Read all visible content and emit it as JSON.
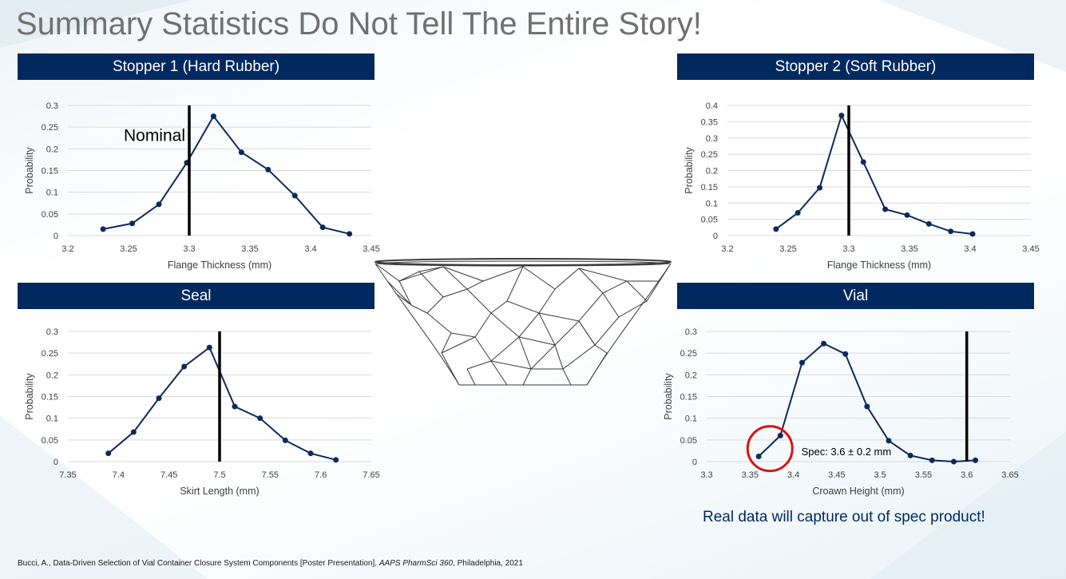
{
  "title": "Summary Statistics Do Not Tell The Entire Story!",
  "panels": [
    {
      "header": "Stopper 1 (Hard Rubber)"
    },
    {
      "header": "Stopper 2 (Soft Rubber)"
    },
    {
      "header": "Seal"
    },
    {
      "header": "Vial"
    }
  ],
  "tagline": "Real data will capture out of spec product!",
  "citation": {
    "part1": "Bucci, A., Data-Driven Selection of Vial Container Closure System Components [Poster Presentation], ",
    "venue": "AAPS PharmSci 360",
    "part2": ", Philadelphia, 2021"
  },
  "illustration": {
    "icon": "wireframe-funnel-icon"
  },
  "colors": {
    "header_bg": "#002960",
    "series_line": "#0d2a5c",
    "marker_line": "#000000",
    "highlight_circle": "#e01010"
  },
  "chart_data": [
    {
      "type": "line",
      "xlabel": "Flange Thickness (mm)",
      "ylabel": "Probability",
      "xlim": [
        3.2,
        3.45
      ],
      "xticks": [
        3.2,
        3.25,
        3.3,
        3.35,
        3.4,
        3.45
      ],
      "ylim": [
        0,
        0.3
      ],
      "yticks": [
        0,
        0.05,
        0.1,
        0.15,
        0.2,
        0.25,
        0.3
      ],
      "x": [
        3.229,
        3.253,
        3.275,
        3.298,
        3.32,
        3.343,
        3.365,
        3.387,
        3.41,
        3.432
      ],
      "y": [
        0.015,
        0.028,
        0.072,
        0.168,
        0.275,
        0.192,
        0.152,
        0.092,
        0.019,
        0.004
      ],
      "vline": 3.3,
      "annotation": "Nominal",
      "grid": true,
      "legend": "none"
    },
    {
      "type": "line",
      "xlabel": "Flange Thickness (mm)",
      "ylabel": "Probability",
      "xlim": [
        3.2,
        3.45
      ],
      "xticks": [
        3.2,
        3.25,
        3.3,
        3.35,
        3.4,
        3.45
      ],
      "ylim": [
        0,
        0.4
      ],
      "yticks": [
        0,
        0.05,
        0.1,
        0.15,
        0.2,
        0.25,
        0.3,
        0.35,
        0.4
      ],
      "x": [
        3.24,
        3.258,
        3.276,
        3.294,
        3.312,
        3.33,
        3.348,
        3.366,
        3.384,
        3.402
      ],
      "y": [
        0.02,
        0.07,
        0.147,
        0.369,
        0.226,
        0.081,
        0.063,
        0.036,
        0.013,
        0.005
      ],
      "vline": 3.3,
      "grid": true,
      "legend": "none"
    },
    {
      "type": "line",
      "xlabel": "Skirt Length (mm)",
      "ylabel": "Probability",
      "xlim": [
        7.35,
        7.65
      ],
      "xticks": [
        7.35,
        7.4,
        7.45,
        7.5,
        7.55,
        7.6,
        7.65
      ],
      "ylim": [
        0,
        0.3
      ],
      "yticks": [
        0,
        0.05,
        0.1,
        0.15,
        0.2,
        0.25,
        0.3
      ],
      "x": [
        7.39,
        7.415,
        7.44,
        7.465,
        7.49,
        7.515,
        7.54,
        7.565,
        7.59,
        7.615
      ],
      "y": [
        0.019,
        0.068,
        0.146,
        0.219,
        0.263,
        0.127,
        0.1,
        0.049,
        0.019,
        0.004
      ],
      "vline": 7.5,
      "grid": true,
      "legend": "none"
    },
    {
      "type": "line",
      "xlabel": "Croawn Height (mm)",
      "ylabel": "Probability",
      "xlim": [
        3.3,
        3.65
      ],
      "xticks": [
        3.3,
        3.35,
        3.4,
        3.45,
        3.5,
        3.55,
        3.6,
        3.65
      ],
      "ylim": [
        0,
        0.3
      ],
      "yticks": [
        0,
        0.05,
        0.1,
        0.15,
        0.2,
        0.25,
        0.3
      ],
      "x": [
        3.36,
        3.385,
        3.41,
        3.435,
        3.46,
        3.485,
        3.51,
        3.535,
        3.56,
        3.585,
        3.61
      ],
      "y": [
        0.012,
        0.06,
        0.228,
        0.272,
        0.248,
        0.127,
        0.048,
        0.014,
        0.003,
        0.0,
        0.003
      ],
      "vline": 3.6,
      "annotation": "Spec: 3.6 ± 0.2 mm",
      "highlight_circle_at": {
        "x": 3.373,
        "y": 0.03
      },
      "grid": true,
      "legend": "none"
    }
  ]
}
